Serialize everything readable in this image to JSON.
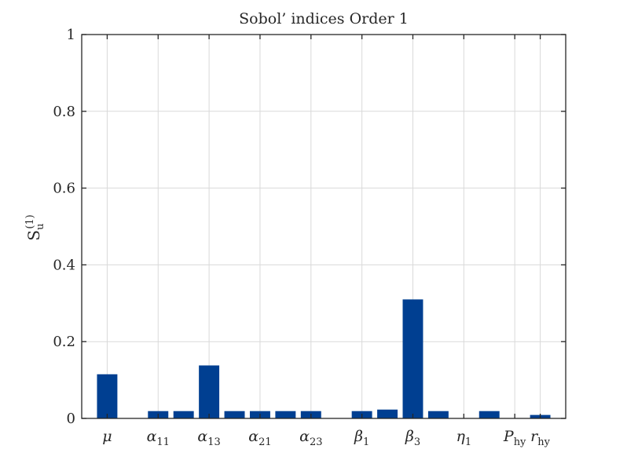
{
  "chart_data": {
    "type": "bar",
    "title": "Sobol’ indices Order 1",
    "ylabel": {
      "base": "S",
      "sub": "u",
      "sup": "(1)"
    },
    "xlabel": "",
    "ylim": [
      0,
      1
    ],
    "yticks": [
      "0",
      "0.2",
      "0.4",
      "0.6",
      "0.8",
      "1"
    ],
    "ytick_values": [
      0,
      0.2,
      0.4,
      0.6,
      0.8,
      1
    ],
    "grid": true,
    "bar_color": "#003f91",
    "x_labels": [
      {
        "index": 1,
        "base": "μ",
        "sub": ""
      },
      {
        "index": 3,
        "base": "α",
        "sub": "11"
      },
      {
        "index": 5,
        "base": "α",
        "sub": "13"
      },
      {
        "index": 7,
        "base": "α",
        "sub": "21"
      },
      {
        "index": 9,
        "base": "α",
        "sub": "23"
      },
      {
        "index": 11,
        "base": "β",
        "sub": "1"
      },
      {
        "index": 13,
        "base": "β",
        "sub": "3"
      },
      {
        "index": 15,
        "base": "η",
        "sub": "1"
      },
      {
        "index": 17,
        "base": "P",
        "sub": "hy"
      },
      {
        "index": 18,
        "base": "r",
        "sub": "hy"
      }
    ],
    "x": [
      1,
      2,
      3,
      4,
      5,
      6,
      7,
      8,
      9,
      10,
      11,
      12,
      13,
      14,
      15,
      16,
      17,
      18
    ],
    "values": [
      0.115,
      0.0,
      0.019,
      0.019,
      0.138,
      0.019,
      0.019,
      0.019,
      0.019,
      0.0,
      0.019,
      0.023,
      0.31,
      0.019,
      0.0,
      0.019,
      0.0,
      0.009
    ]
  }
}
